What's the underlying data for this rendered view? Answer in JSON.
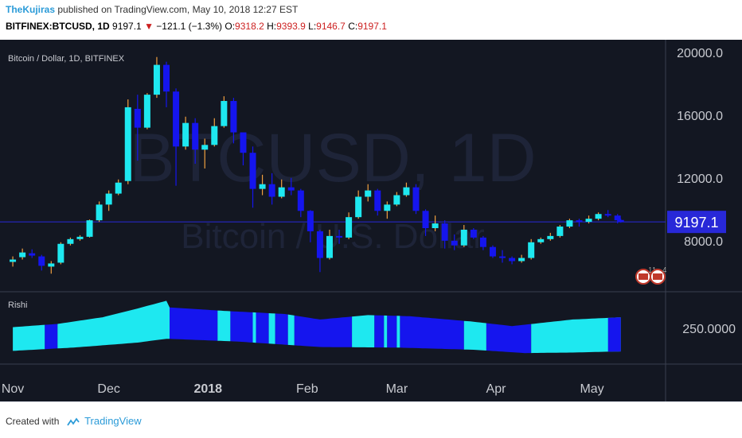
{
  "header": {
    "author": "TheKujiras",
    "published_text": "published on TradingView.com, May 10, 2018 12:27 EST",
    "symbol": "BITFINEX:BTCUSD, 1D",
    "last": "9197.1",
    "change_arrow": "▼",
    "change": "−121.1 (−1.3%)",
    "o_label": "O:",
    "o_value": "9318.2",
    "h_label": "H:",
    "h_value": "9393.9",
    "l_label": "L:",
    "l_value": "9146.7",
    "c_label": "C:",
    "c_value": "9197.1"
  },
  "footer": {
    "created_with": "Created with",
    "brand": "TradingView"
  },
  "colors": {
    "background": "#131722",
    "up": "#1ee8f0",
    "down": "#1515ee",
    "wick_up": "#f0a040",
    "price_line": "#2828d8",
    "watermark": "#1e2438",
    "axis_text": "#c8cad0"
  },
  "chart_data": [
    {
      "type": "candlestick",
      "title": "Bitcoin / Dollar, 1D, BITFINEX",
      "watermark": [
        "BTCUSD, 1D",
        "Bitcoin / U.S. Dollar"
      ],
      "y_ticks": [
        8000,
        12000,
        16000,
        20000
      ],
      "y_tick_labels": [
        "8000.0",
        "12000.0",
        "16000.0",
        "20000.0"
      ],
      "ylim": [
        4800,
        20800
      ],
      "last_price": 9197.1,
      "last_price_label": "9197.1",
      "x_tick_labels": [
        "Nov",
        "Dec",
        "2018",
        "Feb",
        "Mar",
        "Apr",
        "May"
      ],
      "event_badges": [
        "11",
        "4"
      ],
      "series": [
        {
          "values": [
            {
              "d": "2017-11-01",
              "o": 6650,
              "h": 7000,
              "l": 6350,
              "c": 6800
            },
            {
              "d": "2017-11-04",
              "o": 6950,
              "h": 7500,
              "l": 6800,
              "c": 7250
            },
            {
              "d": "2017-11-07",
              "o": 7200,
              "h": 7450,
              "l": 6900,
              "c": 7050
            },
            {
              "d": "2017-11-10",
              "o": 7000,
              "h": 7100,
              "l": 6100,
              "c": 6400
            },
            {
              "d": "2017-11-13",
              "o": 6350,
              "h": 6700,
              "l": 5900,
              "c": 6550
            },
            {
              "d": "2017-11-16",
              "o": 6600,
              "h": 7900,
              "l": 6500,
              "c": 7800
            },
            {
              "d": "2017-11-19",
              "o": 7800,
              "h": 8200,
              "l": 7700,
              "c": 8100
            },
            {
              "d": "2017-11-22",
              "o": 8100,
              "h": 8350,
              "l": 8000,
              "c": 8250
            },
            {
              "d": "2017-11-25",
              "o": 8250,
              "h": 9350,
              "l": 8200,
              "c": 9300
            },
            {
              "d": "2017-11-28",
              "o": 9300,
              "h": 10500,
              "l": 9200,
              "c": 10300
            },
            {
              "d": "2017-12-01",
              "o": 10300,
              "h": 11200,
              "l": 9900,
              "c": 11000
            },
            {
              "d": "2017-12-04",
              "o": 11000,
              "h": 11900,
              "l": 10900,
              "c": 11700
            },
            {
              "d": "2017-12-07",
              "o": 11800,
              "h": 17000,
              "l": 11600,
              "c": 16500
            },
            {
              "d": "2017-12-10",
              "o": 16400,
              "h": 17300,
              "l": 13100,
              "c": 15200
            },
            {
              "d": "2017-12-13",
              "o": 15200,
              "h": 17400,
              "l": 15100,
              "c": 17300
            },
            {
              "d": "2017-12-16",
              "o": 17300,
              "h": 19700,
              "l": 17100,
              "c": 19200
            },
            {
              "d": "2017-12-19",
              "o": 19200,
              "h": 19400,
              "l": 16500,
              "c": 17500
            },
            {
              "d": "2017-12-22",
              "o": 17500,
              "h": 17700,
              "l": 11500,
              "c": 14000
            },
            {
              "d": "2017-12-25",
              "o": 14000,
              "h": 15900,
              "l": 13800,
              "c": 15500
            },
            {
              "d": "2017-12-28",
              "o": 15500,
              "h": 15800,
              "l": 12900,
              "c": 13800
            },
            {
              "d": "2017-12-31",
              "o": 13800,
              "h": 14500,
              "l": 12600,
              "c": 14100
            },
            {
              "d": "2018-01-03",
              "o": 14100,
              "h": 15800,
              "l": 14000,
              "c": 15300
            },
            {
              "d": "2018-01-06",
              "o": 15300,
              "h": 17200,
              "l": 15200,
              "c": 16900
            },
            {
              "d": "2018-01-09",
              "o": 16900,
              "h": 17100,
              "l": 14200,
              "c": 14900
            },
            {
              "d": "2018-01-12",
              "o": 14900,
              "h": 14300,
              "l": 12800,
              "c": 13600
            },
            {
              "d": "2018-01-15",
              "o": 13600,
              "h": 14000,
              "l": 10100,
              "c": 11300
            },
            {
              "d": "2018-01-18",
              "o": 11300,
              "h": 12200,
              "l": 10900,
              "c": 11600
            },
            {
              "d": "2018-01-21",
              "o": 11600,
              "h": 12300,
              "l": 10300,
              "c": 10800
            },
            {
              "d": "2018-01-24",
              "o": 10800,
              "h": 11900,
              "l": 10700,
              "c": 11400
            },
            {
              "d": "2018-01-27",
              "o": 11400,
              "h": 12000,
              "l": 10900,
              "c": 11200
            },
            {
              "d": "2018-01-30",
              "o": 11200,
              "h": 11300,
              "l": 9500,
              "c": 9900
            },
            {
              "d": "2018-02-02",
              "o": 9900,
              "h": 9950,
              "l": 7900,
              "c": 8600
            },
            {
              "d": "2018-02-05",
              "o": 8600,
              "h": 8700,
              "l": 6000,
              "c": 6900
            },
            {
              "d": "2018-02-08",
              "o": 6900,
              "h": 8700,
              "l": 6800,
              "c": 8300
            },
            {
              "d": "2018-02-11",
              "o": 8300,
              "h": 8700,
              "l": 7800,
              "c": 8200
            },
            {
              "d": "2018-02-14",
              "o": 8200,
              "h": 9800,
              "l": 8100,
              "c": 9500
            },
            {
              "d": "2018-02-17",
              "o": 9500,
              "h": 11200,
              "l": 9400,
              "c": 10800
            },
            {
              "d": "2018-02-20",
              "o": 10800,
              "h": 11600,
              "l": 10500,
              "c": 11200
            },
            {
              "d": "2018-02-23",
              "o": 11200,
              "h": 11300,
              "l": 9600,
              "c": 9900
            },
            {
              "d": "2018-02-26",
              "o": 9900,
              "h": 10500,
              "l": 9400,
              "c": 10300
            },
            {
              "d": "2018-03-01",
              "o": 10300,
              "h": 11100,
              "l": 10200,
              "c": 10900
            },
            {
              "d": "2018-03-04",
              "o": 10900,
              "h": 11700,
              "l": 10800,
              "c": 11400
            },
            {
              "d": "2018-03-07",
              "o": 11400,
              "h": 11600,
              "l": 9700,
              "c": 9900
            },
            {
              "d": "2018-03-10",
              "o": 9900,
              "h": 10000,
              "l": 8300,
              "c": 8800
            },
            {
              "d": "2018-03-13",
              "o": 8800,
              "h": 9600,
              "l": 8600,
              "c": 9100
            },
            {
              "d": "2018-03-16",
              "o": 9100,
              "h": 9300,
              "l": 7500,
              "c": 8000
            },
            {
              "d": "2018-03-19",
              "o": 8000,
              "h": 8400,
              "l": 7400,
              "c": 7700
            },
            {
              "d": "2018-03-22",
              "o": 7700,
              "h": 9000,
              "l": 7600,
              "c": 8700
            },
            {
              "d": "2018-03-25",
              "o": 8700,
              "h": 8800,
              "l": 8100,
              "c": 8200
            },
            {
              "d": "2018-03-28",
              "o": 8200,
              "h": 8300,
              "l": 7400,
              "c": 7600
            },
            {
              "d": "2018-03-31",
              "o": 7600,
              "h": 7700,
              "l": 6900,
              "c": 7000
            },
            {
              "d": "2018-04-03",
              "o": 7000,
              "h": 7400,
              "l": 6600,
              "c": 6900
            },
            {
              "d": "2018-04-06",
              "o": 6900,
              "h": 7000,
              "l": 6500,
              "c": 6700
            },
            {
              "d": "2018-04-09",
              "o": 6700,
              "h": 7100,
              "l": 6600,
              "c": 6900
            },
            {
              "d": "2018-04-12",
              "o": 6900,
              "h": 8100,
              "l": 6800,
              "c": 7900
            },
            {
              "d": "2018-04-15",
              "o": 7900,
              "h": 8200,
              "l": 7800,
              "c": 8100
            },
            {
              "d": "2018-04-18",
              "o": 8100,
              "h": 8500,
              "l": 8000,
              "c": 8300
            },
            {
              "d": "2018-04-21",
              "o": 8300,
              "h": 9000,
              "l": 8200,
              "c": 8900
            },
            {
              "d": "2018-04-24",
              "o": 8900,
              "h": 9400,
              "l": 8800,
              "c": 9300
            },
            {
              "d": "2018-04-27",
              "o": 9300,
              "h": 9400,
              "l": 8900,
              "c": 9200
            },
            {
              "d": "2018-04-30",
              "o": 9200,
              "h": 9600,
              "l": 9100,
              "c": 9400
            },
            {
              "d": "2018-05-03",
              "o": 9400,
              "h": 9800,
              "l": 9300,
              "c": 9700
            },
            {
              "d": "2018-05-06",
              "o": 9700,
              "h": 9950,
              "l": 9500,
              "c": 9600
            },
            {
              "d": "2018-05-09",
              "o": 9600,
              "h": 9700,
              "l": 9100,
              "c": 9300
            },
            {
              "d": "2018-05-10",
              "o": 9318.2,
              "h": 9393.9,
              "l": 9146.7,
              "c": 9197.1
            }
          ]
        }
      ]
    },
    {
      "type": "area",
      "title": "Rishi",
      "y_ticks": [
        250
      ],
      "y_tick_labels": [
        "250.0000"
      ],
      "ylim": [
        185,
        315
      ],
      "x_start": "2017-11-01",
      "x_end": "2018-05-10",
      "upper": [
        {
          "d": "2017-11-01",
          "v": 252
        },
        {
          "d": "2017-11-15",
          "v": 258
        },
        {
          "d": "2017-11-29",
          "v": 270
        },
        {
          "d": "2017-12-10",
          "v": 286
        },
        {
          "d": "2017-12-19",
          "v": 300
        },
        {
          "d": "2017-12-20",
          "v": 288
        },
        {
          "d": "2018-01-05",
          "v": 282
        },
        {
          "d": "2018-01-25",
          "v": 276
        },
        {
          "d": "2018-02-05",
          "v": 266
        },
        {
          "d": "2018-02-20",
          "v": 274
        },
        {
          "d": "2018-03-05",
          "v": 272
        },
        {
          "d": "2018-03-25",
          "v": 262
        },
        {
          "d": "2018-04-06",
          "v": 254
        },
        {
          "d": "2018-04-25",
          "v": 266
        },
        {
          "d": "2018-05-10",
          "v": 270
        }
      ],
      "lower": [
        {
          "d": "2017-11-01",
          "v": 209
        },
        {
          "d": "2017-11-20",
          "v": 215
        },
        {
          "d": "2017-12-10",
          "v": 224
        },
        {
          "d": "2017-12-19",
          "v": 231
        },
        {
          "d": "2018-01-10",
          "v": 226
        },
        {
          "d": "2018-02-05",
          "v": 216
        },
        {
          "d": "2018-03-01",
          "v": 215
        },
        {
          "d": "2018-03-25",
          "v": 211
        },
        {
          "d": "2018-04-10",
          "v": 205
        },
        {
          "d": "2018-04-25",
          "v": 206
        },
        {
          "d": "2018-05-10",
          "v": 208
        }
      ],
      "segments": [
        {
          "from": "2017-11-01",
          "to": "2017-11-11",
          "state": "up"
        },
        {
          "from": "2017-11-11",
          "to": "2017-11-15",
          "state": "down"
        },
        {
          "from": "2017-11-15",
          "to": "2017-12-20",
          "state": "up"
        },
        {
          "from": "2018-12-20",
          "to": "2018-01-04",
          "state": "down"
        },
        {
          "from": "2017-12-20",
          "to": "2018-01-04",
          "state": "down"
        },
        {
          "from": "2018-01-04",
          "to": "2018-01-08",
          "state": "up"
        },
        {
          "from": "2018-01-08",
          "to": "2018-01-15",
          "state": "down"
        },
        {
          "from": "2018-01-15",
          "to": "2018-01-16",
          "state": "up"
        },
        {
          "from": "2018-01-16",
          "to": "2018-01-20",
          "state": "down"
        },
        {
          "from": "2018-01-20",
          "to": "2018-01-22",
          "state": "up"
        },
        {
          "from": "2018-01-22",
          "to": "2018-01-26",
          "state": "down"
        },
        {
          "from": "2018-01-26",
          "to": "2018-01-28",
          "state": "up"
        },
        {
          "from": "2018-01-28",
          "to": "2018-02-15",
          "state": "down"
        },
        {
          "from": "2018-02-15",
          "to": "2018-02-22",
          "state": "up"
        },
        {
          "from": "2018-02-22",
          "to": "2018-02-25",
          "state": "down"
        },
        {
          "from": "2018-02-25",
          "to": "2018-02-26",
          "state": "up"
        },
        {
          "from": "2018-02-26",
          "to": "2018-03-01",
          "state": "down"
        },
        {
          "from": "2018-03-01",
          "to": "2018-03-02",
          "state": "up"
        },
        {
          "from": "2018-03-02",
          "to": "2018-03-22",
          "state": "down"
        },
        {
          "from": "2018-03-22",
          "to": "2018-03-29",
          "state": "up"
        },
        {
          "from": "2018-03-29",
          "to": "2018-04-12",
          "state": "down"
        },
        {
          "from": "2018-04-12",
          "to": "2018-05-10",
          "state": "up"
        },
        {
          "from": "2018-05-06",
          "to": "2018-05-10",
          "state": "down"
        }
      ]
    }
  ]
}
